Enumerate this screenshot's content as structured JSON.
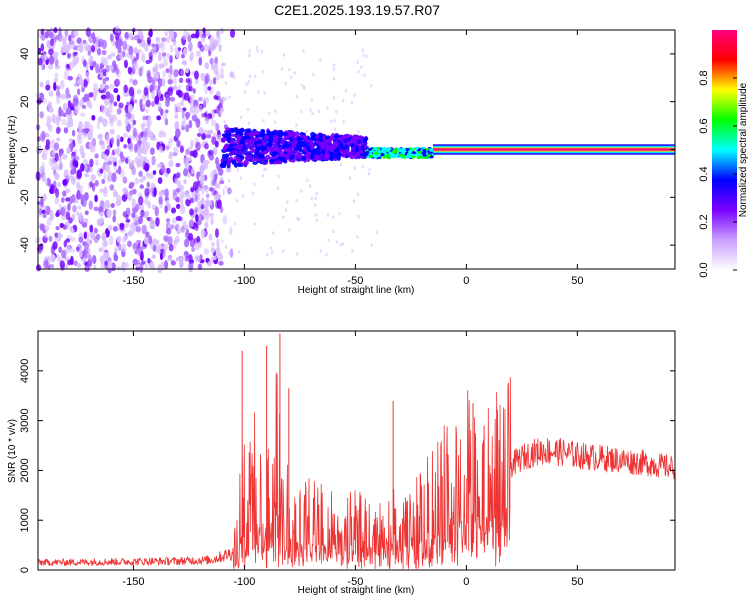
{
  "title": "C2E1.2025.193.19.57.R07",
  "chart_data": [
    {
      "type": "heatmap",
      "xlabel": "Height of straight line (km)",
      "ylabel": "Frequency (Hz)",
      "xlim": [
        -193,
        94
      ],
      "ylim": [
        -50,
        50
      ],
      "xticks": [
        -150,
        -100,
        -50,
        0,
        50
      ],
      "yticks": [
        -40,
        -20,
        0,
        20,
        40
      ],
      "colorbar": {
        "label": "Normalized spectral amplitude",
        "range": [
          0,
          1
        ],
        "ticks": [
          0.0,
          0.2,
          0.4,
          0.6,
          0.8
        ],
        "tick_labels": [
          "0.0",
          "0.2",
          "0.4",
          "0.6",
          "0.8"
        ],
        "colors": [
          "#ffffff",
          "#c9a0ff",
          "#7b00ff",
          "#0000ff",
          "#00ffff",
          "#00ff00",
          "#ffff00",
          "#ff0000",
          "#ff0080"
        ]
      },
      "regions": [
        {
          "x_range": [
            -193,
            -110
          ],
          "freq_range": [
            -50,
            50
          ],
          "amplitude": 0.08
        },
        {
          "x_range": [
            -110,
            -45
          ],
          "freq_range": [
            -8,
            8
          ],
          "amplitude": 0.3
        },
        {
          "x_range": [
            -45,
            -15
          ],
          "freq_range": [
            -4,
            2
          ],
          "amplitude": 0.45
        },
        {
          "x_range": [
            -15,
            94
          ],
          "freq_range": [
            -1,
            1
          ],
          "amplitude": 0.95
        }
      ]
    },
    {
      "type": "line",
      "xlabel": "Height of straight line (km)",
      "ylabel": "SNR (10 * v/v)",
      "xlim": [
        -193,
        94
      ],
      "ylim": [
        0,
        4800
      ],
      "xticks": [
        -150,
        -100,
        -50,
        0,
        50
      ],
      "yticks": [
        0,
        1000,
        2000,
        3000,
        4000
      ],
      "series": [
        {
          "color": "#ee3333",
          "x": [
            -193,
            -170,
            -150,
            -130,
            -115,
            -105,
            -102,
            -100,
            -98,
            -95,
            -92,
            -90,
            -88,
            -86,
            -84,
            -82,
            -80,
            -78,
            -75,
            -70,
            -65,
            -60,
            -55,
            -50,
            -45,
            -40,
            -35,
            -33,
            -30,
            -25,
            -20,
            -15,
            -10,
            -5,
            0,
            3,
            5,
            8,
            10,
            15,
            20,
            25,
            30,
            35,
            40,
            45,
            50,
            60,
            70,
            80,
            94
          ],
          "y": [
            150,
            160,
            170,
            180,
            200,
            350,
            1200,
            2000,
            1500,
            1800,
            1300,
            1600,
            1200,
            2400,
            1700,
            1400,
            1300,
            1000,
            900,
            1100,
            1000,
            900,
            800,
            900,
            800,
            700,
            900,
            1000,
            800,
            900,
            1100,
            1400,
            1600,
            1800,
            2000,
            1900,
            1500,
            1600,
            1800,
            2000,
            2100,
            2250,
            2350,
            2400,
            2380,
            2350,
            2300,
            2250,
            2200,
            2150,
            2050
          ],
          "spikes": [
            {
              "x": -101,
              "y": 4400
            },
            {
              "x": -90,
              "y": 4500
            },
            {
              "x": -84,
              "y": 4750
            },
            {
              "x": -80,
              "y": 3650
            },
            {
              "x": -33,
              "y": 3400
            },
            {
              "x": 3,
              "y": 3350
            },
            {
              "x": 8,
              "y": 2900
            }
          ]
        }
      ]
    }
  ]
}
